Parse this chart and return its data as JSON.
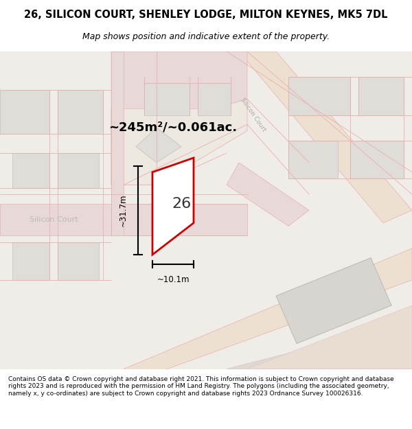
{
  "title": "26, SILICON COURT, SHENLEY LODGE, MILTON KEYNES, MK5 7DL",
  "subtitle": "Map shows position and indicative extent of the property.",
  "map_bg": "#f0ede8",
  "area_label": "~245m²/~0.061ac.",
  "number_label": "26",
  "width_label": "~10.1m",
  "height_label": "~31.7m",
  "street_label": "Silicon Court",
  "street_label2": "Silicon Court",
  "copyright_text": "Contains OS data © Crown copyright and database right 2021. This information is subject to Crown copyright and database rights 2023 and is reproduced with the permission of HM Land Registry. The polygons (including the associated geometry, namely x, y co-ordinates) are subject to Crown copyright and database rights 2023 Ordnance Survey 100026316.",
  "building_fill": "#e0ddd8",
  "building_edge": "#cccccc",
  "road_fill": "#e8d8d8",
  "road_pink": "#e8b0b0",
  "property_fill": "#ffffff",
  "property_edge": "#cc0000"
}
